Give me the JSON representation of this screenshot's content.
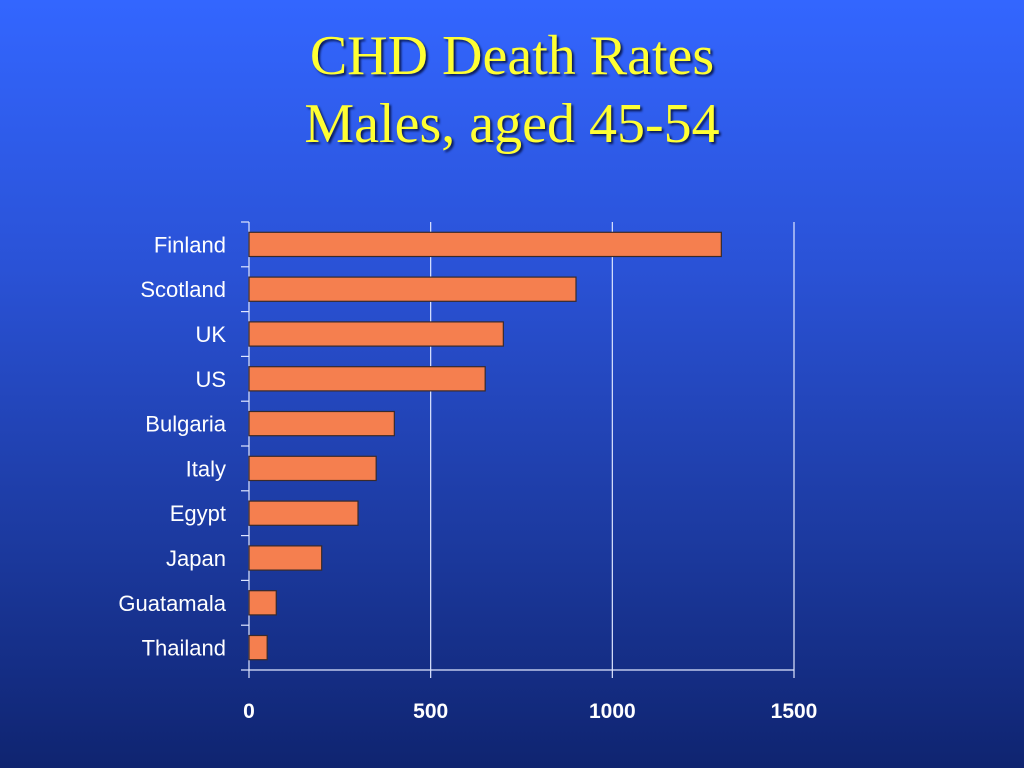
{
  "slide": {
    "title_line1": "CHD Death Rates",
    "title_line2": "Males, aged 45-54"
  },
  "colors": {
    "bar_fill": "#f57f4f",
    "bar_stroke": "#3a2a2a",
    "grid": "#dfe6ff",
    "text": "#ffffff",
    "title": "#ffff33"
  },
  "chart_data": {
    "type": "bar",
    "orientation": "horizontal",
    "categories": [
      "Finland",
      "Scotland",
      "UK",
      "US",
      "Bulgaria",
      "Italy",
      "Egypt",
      "Japan",
      "Guatamala",
      "Thailand"
    ],
    "values": [
      1300,
      900,
      700,
      650,
      400,
      350,
      300,
      200,
      75,
      50
    ],
    "xlim": [
      0,
      1500
    ],
    "xticks": [
      0,
      500,
      1000,
      1500
    ],
    "grid": true,
    "legend": "none"
  }
}
